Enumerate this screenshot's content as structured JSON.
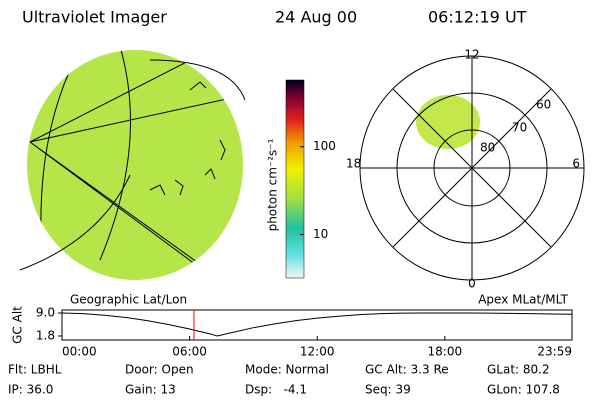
{
  "header": {
    "title": "Ultraviolet Imager",
    "date": "24 Aug 00",
    "time": "06:12:19 UT"
  },
  "colorbar": {
    "label": "photon cm⁻²s⁻¹",
    "lim": [
      3.2,
      575
    ],
    "ticks": [
      10,
      100
    ],
    "log": true
  },
  "polar": {
    "hours": {
      "top": "12",
      "right": "6",
      "bottom": "0",
      "left": "18"
    },
    "rings": [
      "80",
      "70",
      "60"
    ]
  },
  "panels": {
    "left": "Geographic Lat/Lon",
    "right": "Apex MLat/MLT"
  },
  "chart_data": {
    "type": "line",
    "ylabel": "GC Alt",
    "x": [
      0,
      1,
      2,
      3,
      4,
      5,
      6,
      7,
      7.3,
      8,
      9,
      10,
      11,
      12,
      13,
      14,
      15,
      16,
      17,
      18,
      19,
      20,
      21,
      22,
      23,
      23.98
    ],
    "values": [
      9.0,
      8.8,
      8.3,
      7.6,
      6.6,
      5.4,
      4.0,
      2.4,
      1.8,
      2.9,
      4.4,
      5.6,
      6.6,
      7.4,
      8.0,
      8.5,
      8.8,
      8.95,
      9.0,
      9.0,
      9.0,
      8.95,
      8.9,
      8.8,
      8.7,
      8.6
    ],
    "color": "#000000",
    "marker_x": 6.205,
    "marker_color": "#ff0000",
    "xlim": [
      0,
      23.98
    ],
    "ylim": [
      1.8,
      9.0
    ],
    "xticks": [
      {
        "value": 0,
        "label": "00:00"
      },
      {
        "value": 6,
        "label": "06:00"
      },
      {
        "value": 12,
        "label": "12:00"
      },
      {
        "value": 18,
        "label": "18:00"
      },
      {
        "value": 23.98,
        "label": "23:59"
      }
    ],
    "yticks": [
      {
        "value": 9.0,
        "label": "9.0"
      },
      {
        "value": 1.8,
        "label": "1.8"
      }
    ]
  },
  "footer": {
    "flt": "Flt: LBHL",
    "ip": "IP: 36.0",
    "door": "Door: Open",
    "gain": "Gain: 13",
    "mode": "Mode: Normal",
    "dsp": "Dsp:   -4.1",
    "gcalt": "GC Alt: 3.3 Re",
    "seq": "Seq: 39",
    "glat": "GLat: 80.2",
    "glon": "GLon: 107.8"
  }
}
